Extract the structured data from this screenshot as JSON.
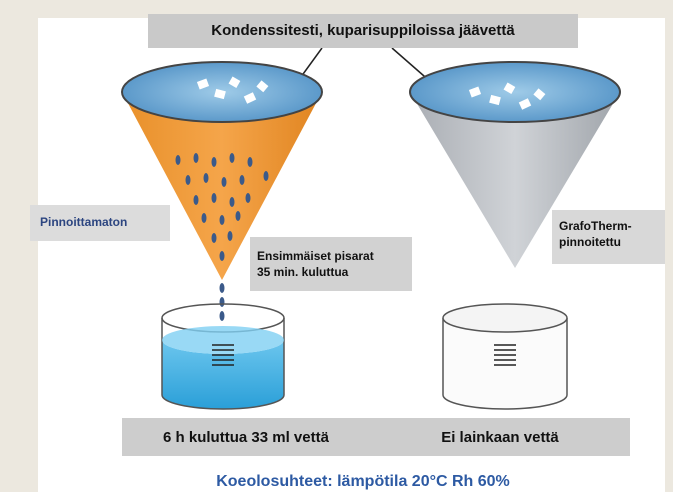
{
  "title": "Kondenssitesti, kuparisuppiloissa jäävettä",
  "left_label": "Pinnoittamaton",
  "drop_note": {
    "line1": "Ensimmäiset pisarat",
    "line2": "35 min. kuluttua"
  },
  "right_label": {
    "line1": "GrafoTherm-",
    "line2": "pinnoitettu"
  },
  "left_result": "6 h kuluttua 33 ml vettä",
  "right_result": "Ei lainkaan vettä",
  "conditions": "Koeolosuhteet:  lämpötila 20°C  Rh 60%"
}
